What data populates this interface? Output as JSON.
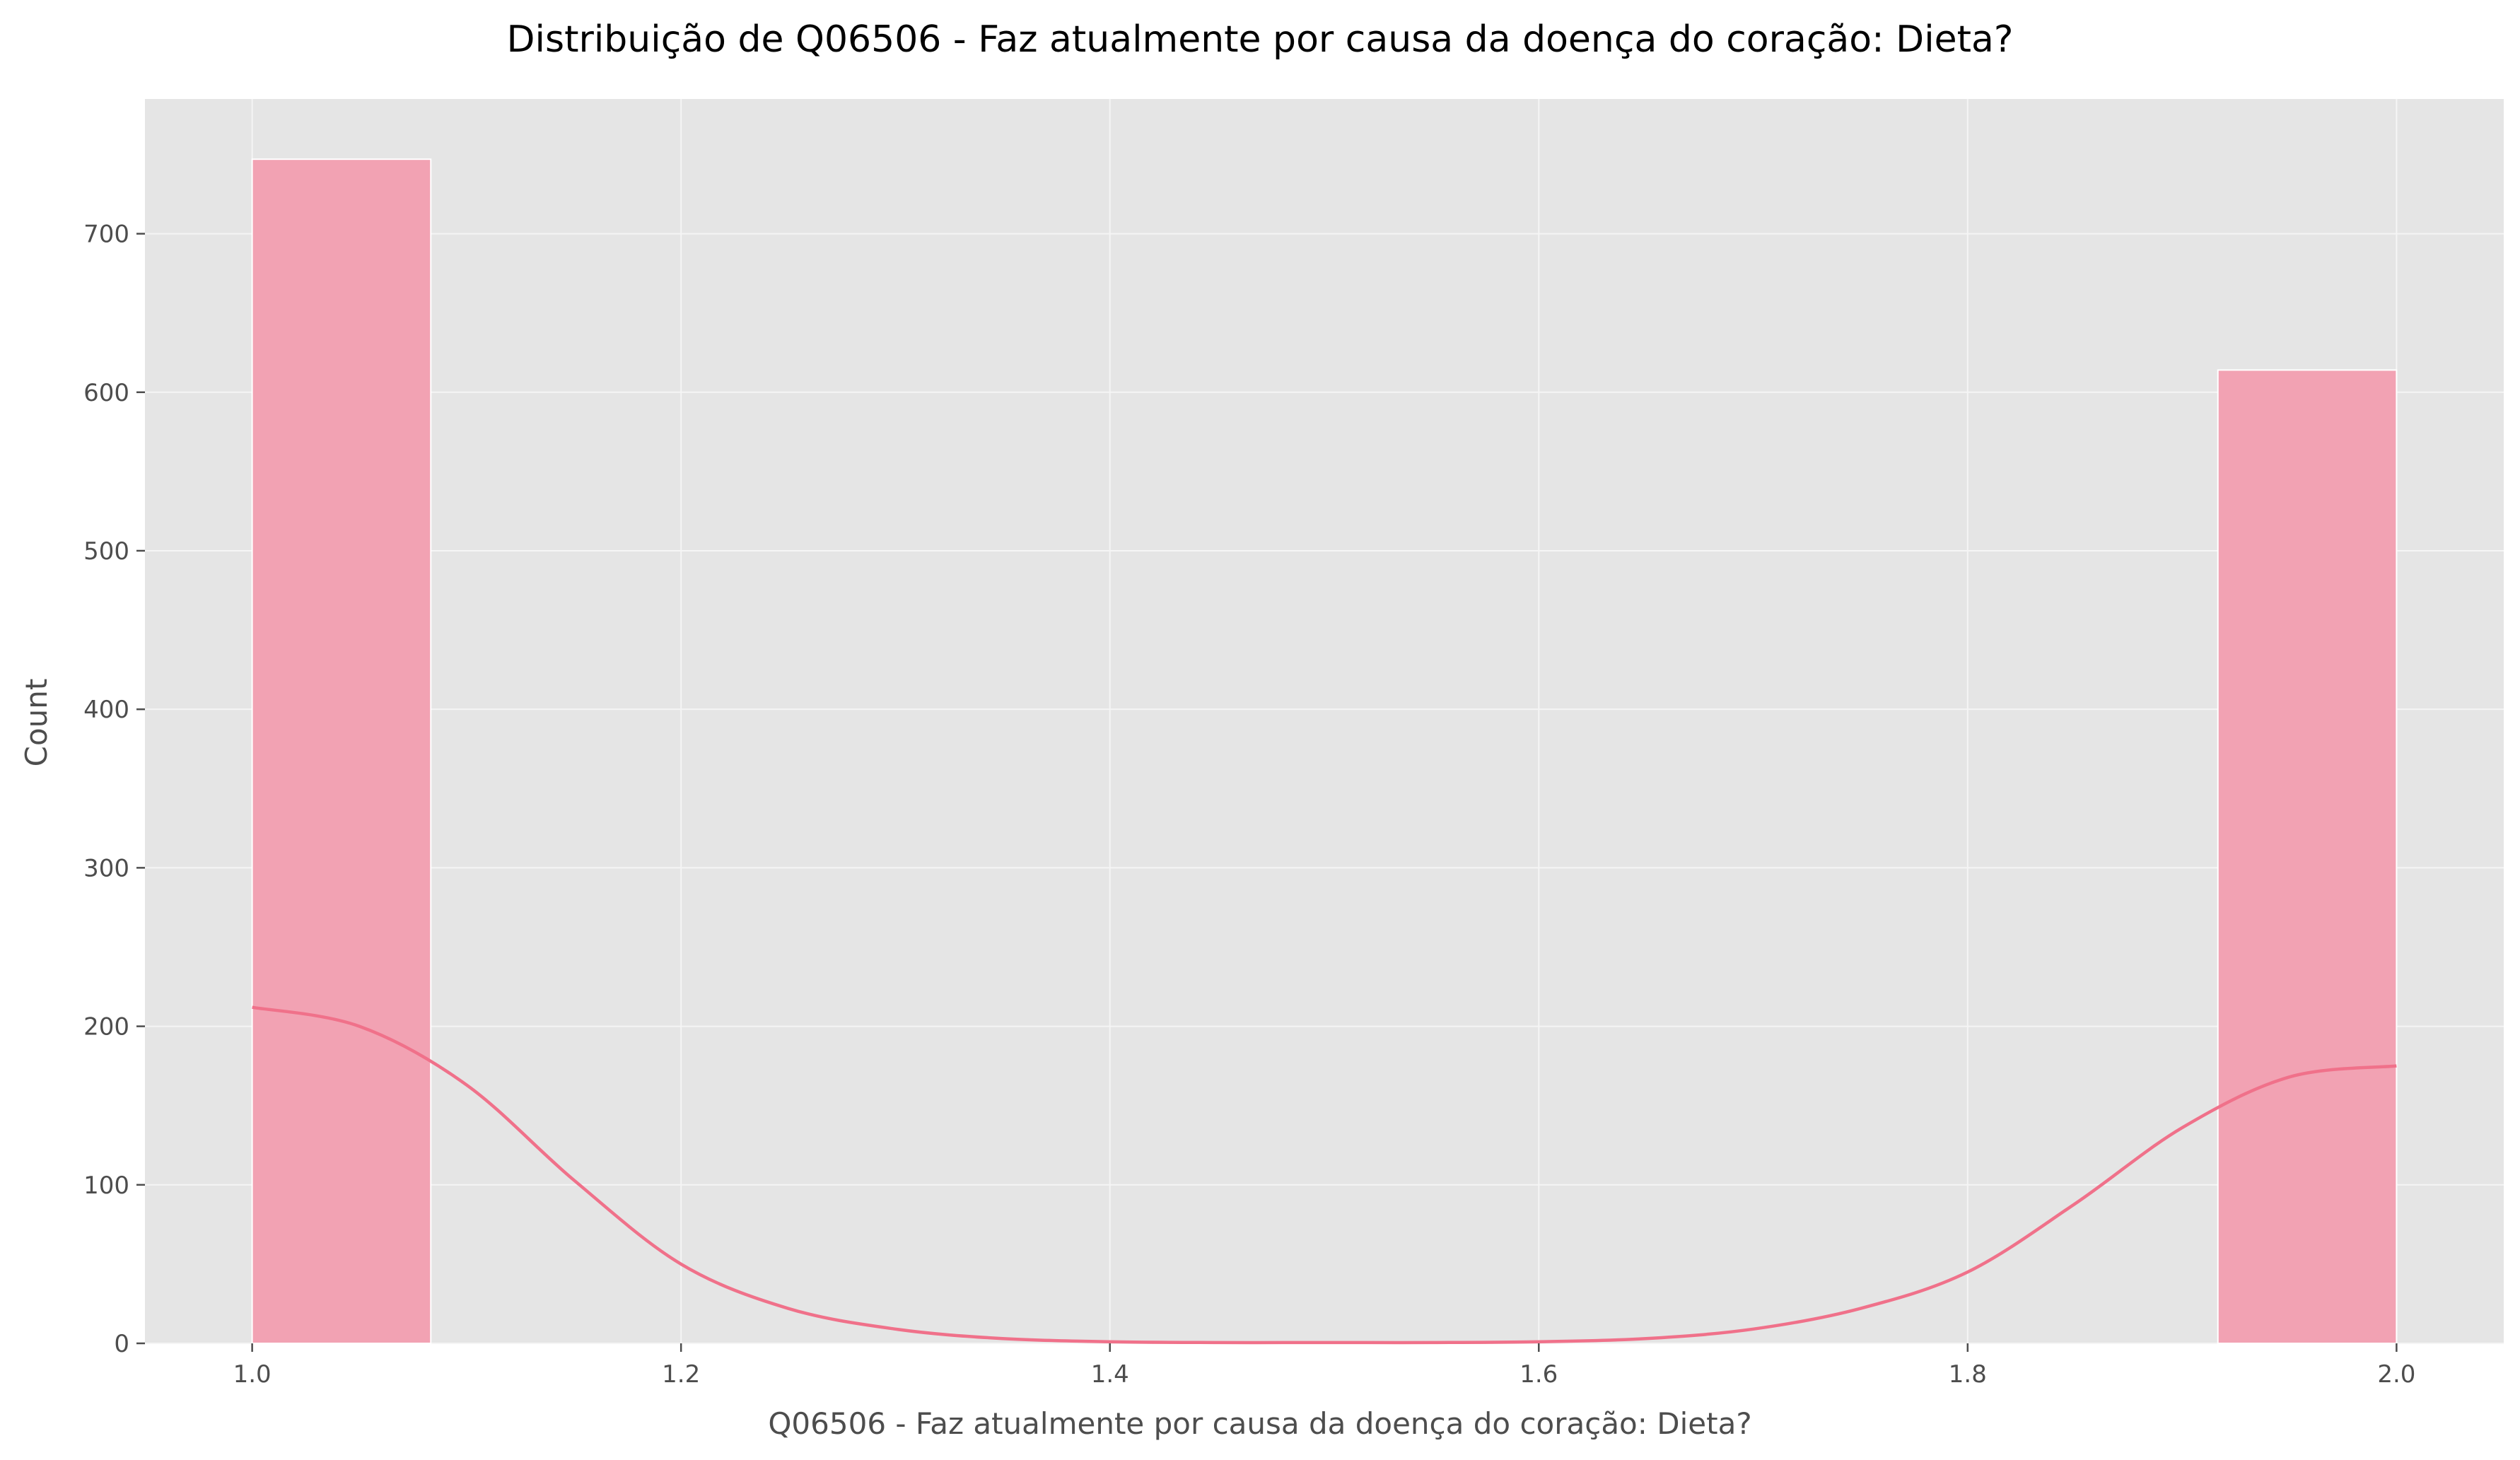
{
  "chart_data": {
    "type": "bar",
    "subtype": "histogram-with-kde",
    "title": "Distribuição de Q06506 - Faz atualmente por causa da doença do coração: Dieta?",
    "xlabel": "Q06506 - Faz atualmente por causa da doença do coração: Dieta?",
    "ylabel": "Count",
    "xlim": [
      0.95,
      2.05
    ],
    "ylim": [
      0,
      785
    ],
    "grid": true,
    "x_ticks": [
      1.0,
      1.2,
      1.4,
      1.6,
      1.8,
      2.0
    ],
    "x_tick_labels": [
      "1.0",
      "1.2",
      "1.4",
      "1.6",
      "1.8",
      "2.0"
    ],
    "y_ticks": [
      0,
      100,
      200,
      300,
      400,
      500,
      600,
      700
    ],
    "y_tick_labels": [
      "0",
      "100",
      "200",
      "300",
      "400",
      "500",
      "600",
      "700"
    ],
    "bins": [
      {
        "start": 1.0,
        "end": 1.0833,
        "count": 747
      },
      {
        "start": 1.9167,
        "end": 2.0,
        "count": 614
      }
    ],
    "kde": {
      "x": [
        1.0,
        1.05,
        1.1,
        1.15,
        1.2,
        1.25,
        1.3,
        1.35,
        1.4,
        1.45,
        1.5,
        1.55,
        1.6,
        1.65,
        1.7,
        1.75,
        1.8,
        1.85,
        1.9,
        1.95,
        2.0
      ],
      "y": [
        212,
        200,
        163,
        103,
        50,
        22,
        9,
        3,
        1,
        0.5,
        0.5,
        0.5,
        1,
        3,
        9,
        22,
        45,
        88,
        136,
        168,
        175
      ]
    },
    "colors": {
      "bar_fill": "#f2a2b3",
      "bar_stroke": "#ffffff",
      "kde_line": "#f0718a",
      "plot_background": "#e5e5e5",
      "grid": "#f5f5f5"
    }
  }
}
